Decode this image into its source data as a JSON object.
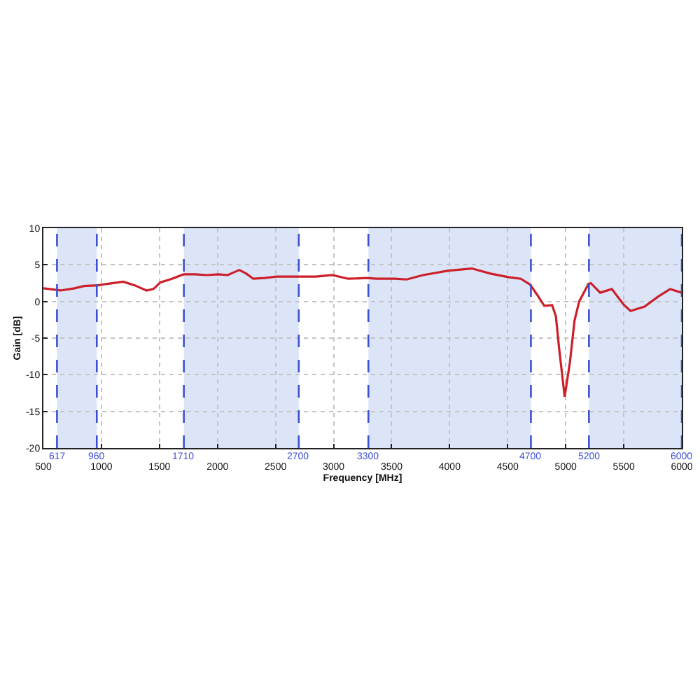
{
  "chart_data": {
    "type": "line",
    "xlabel": "Frequency [MHz]",
    "ylabel": "Gain [dB]",
    "series": [
      {
        "color": "#cc1f2a",
        "x": [
          500,
          648,
          768,
          848,
          968,
          1048,
          1188,
          1288,
          1388,
          1448,
          1508,
          1608,
          1708,
          1808,
          1908,
          2008,
          2088,
          2188,
          2248,
          2308,
          2408,
          2508,
          2688,
          2848,
          2988,
          3126,
          3287,
          3367,
          3528,
          3629,
          3770,
          3990,
          4191,
          4352,
          4513,
          4613,
          4694,
          4754,
          4815,
          4883,
          4915,
          4943,
          4991,
          5036,
          5076,
          5116,
          5196,
          5216,
          5297,
          5397,
          5498,
          5558,
          5679,
          5799,
          5900,
          6000
        ],
        "values": [
          1.8,
          1.5,
          1.8,
          2.1,
          2.2,
          2.4,
          2.7,
          2.2,
          1.5,
          1.7,
          2.6,
          3.1,
          3.7,
          3.7,
          3.6,
          3.7,
          3.6,
          4.3,
          3.8,
          3.1,
          3.2,
          3.4,
          3.4,
          3.4,
          3.6,
          3.1,
          3.2,
          3.1,
          3.1,
          3.0,
          3.6,
          4.2,
          4.5,
          3.8,
          3.3,
          3.1,
          2.3,
          0.9,
          -0.6,
          -0.5,
          -2.0,
          -6.4,
          -13.0,
          -8.3,
          -2.6,
          0.0,
          2.4,
          2.5,
          1.2,
          1.7,
          -0.4,
          -1.3,
          -0.7,
          0.7,
          1.7,
          1.2
        ]
      }
    ],
    "xlim": [
      500,
      6000
    ],
    "xticks": [
      500,
      1000,
      1500,
      2000,
      2500,
      3000,
      3500,
      4000,
      4500,
      5000,
      5500,
      6000
    ],
    "ylim": [
      -20,
      10
    ],
    "yticks": [
      -20,
      -15,
      -10,
      -5,
      0,
      5,
      10
    ],
    "grid": true,
    "line_style": "solid",
    "bands": [
      {
        "axis": "x",
        "from": 617,
        "to": 960,
        "color": "#dce5f8"
      },
      {
        "axis": "x",
        "from": 1710,
        "to": 2700,
        "color": "#dce5f8"
      },
      {
        "axis": "x",
        "from": 3300,
        "to": 4700,
        "color": "#dce5f8"
      },
      {
        "axis": "x",
        "from": 5200,
        "to": 6000,
        "color": "#dce5f8"
      }
    ],
    "ref_lines": [
      {
        "axis": "x",
        "value": 617,
        "label": "617",
        "color": "#3c50d2",
        "line_style": "dashed"
      },
      {
        "axis": "x",
        "value": 960,
        "label": "960",
        "color": "#3c50d2",
        "line_style": "dashed"
      },
      {
        "axis": "x",
        "value": 1710,
        "label": "1710",
        "color": "#3c50d2",
        "line_style": "dashed"
      },
      {
        "axis": "x",
        "value": 2700,
        "label": "2700",
        "color": "#3c50d2",
        "line_style": "dashed"
      },
      {
        "axis": "x",
        "value": 3300,
        "label": "3300",
        "color": "#3c50d2",
        "line_style": "dashed"
      },
      {
        "axis": "x",
        "value": 4700,
        "label": "4700",
        "color": "#3c50d2",
        "line_style": "dashed"
      },
      {
        "axis": "x",
        "value": 5200,
        "label": "5200",
        "color": "#3c50d2",
        "line_style": "dashed"
      },
      {
        "axis": "x",
        "value": 6000,
        "label": "6000",
        "color": "#3c50d2",
        "line_style": "dashed"
      }
    ]
  }
}
